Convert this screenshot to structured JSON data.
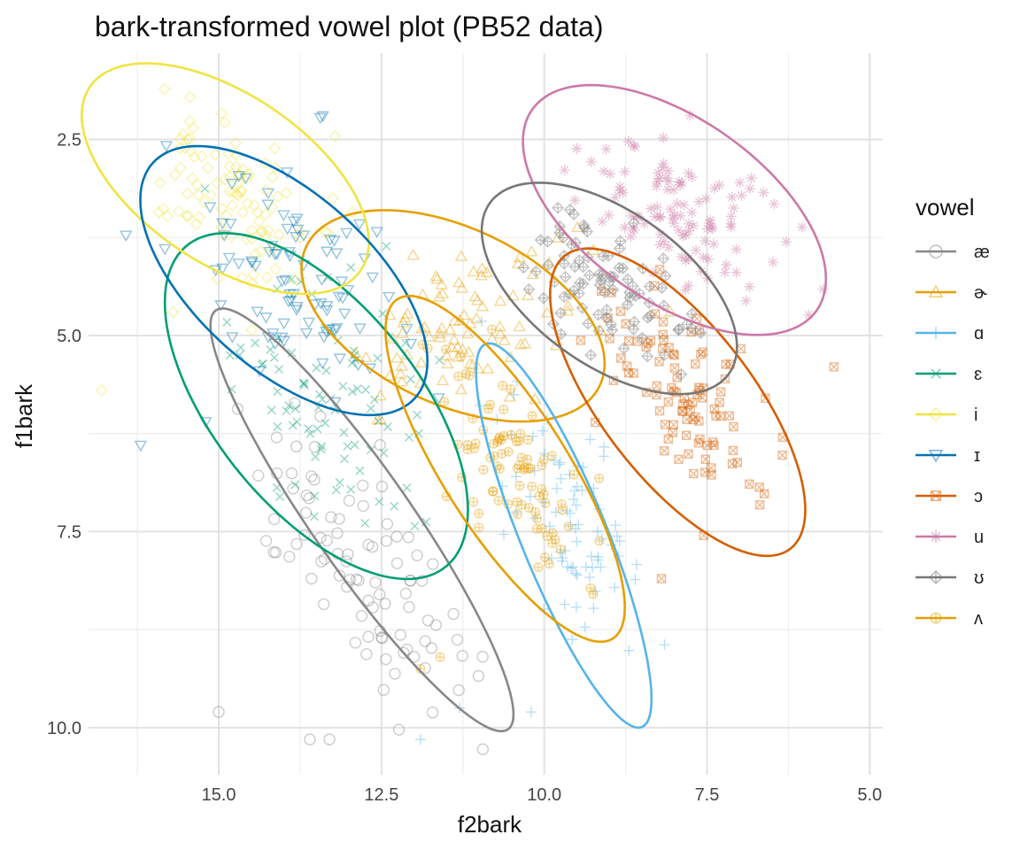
{
  "chart_data": {
    "type": "scatter",
    "title": "bark-transformed vowel plot (PB52 data)",
    "xlabel": "f2bark",
    "ylabel": "f1bark",
    "x_reversed": true,
    "y_reversed": true,
    "xlim": [
      17.0,
      4.8
    ],
    "ylim": [
      1.4,
      10.6
    ],
    "x_ticks": [
      "15.0",
      "12.5",
      "10.0",
      "7.5",
      "5.0"
    ],
    "y_ticks": [
      "2.5",
      "5.0",
      "7.5",
      "10.0"
    ],
    "grid": true,
    "legend_position": "right",
    "legend_title": "vowel",
    "series": [
      {
        "name": "æ",
        "color": "#888888",
        "shape": "circle",
        "center": [
          12.8,
          7.9
        ],
        "sd": [
          0.9,
          1.0
        ],
        "cov": -0.75,
        "n": 90,
        "ellipse": {
          "cx": 12.8,
          "cy": 7.35,
          "sx": 0.95,
          "sy": 1.1,
          "r": -0.92
        },
        "extra": [
          [
            15.0,
            9.8
          ],
          [
            13.6,
            10.15
          ],
          [
            13.3,
            10.15
          ],
          [
            12.5,
            8.85
          ]
        ]
      },
      {
        "name": "ɚ",
        "color": "#E69F00",
        "shape": "triangle",
        "center": [
          11.2,
          4.9
        ],
        "sd": [
          0.9,
          0.6
        ],
        "cov": 0.4,
        "n": 90,
        "ellipse": {
          "cx": 11.4,
          "cy": 4.75,
          "sx": 0.95,
          "sy": 0.55,
          "r": -0.45
        }
      },
      {
        "name": "ɑ",
        "color": "#56B4E9",
        "shape": "plus",
        "center": [
          9.6,
          7.4
        ],
        "sd": [
          0.5,
          0.8
        ],
        "cov": -0.6,
        "n": 80,
        "ellipse": {
          "cx": 9.7,
          "cy": 7.55,
          "sx": 0.55,
          "sy": 1.0,
          "r": -0.85
        },
        "extra": [
          [
            11.9,
            10.15
          ],
          [
            10.2,
            9.8
          ],
          [
            11.3,
            9.75
          ]
        ]
      },
      {
        "name": "ɛ",
        "color": "#009E73",
        "shape": "x",
        "center": [
          13.3,
          5.8
        ],
        "sd": [
          0.85,
          0.8
        ],
        "cov": -0.5,
        "n": 90,
        "ellipse": {
          "cx": 13.5,
          "cy": 5.9,
          "sx": 0.95,
          "sy": 0.9,
          "r": -0.6
        }
      },
      {
        "name": "i",
        "color": "#F0E442",
        "shape": "diamond",
        "center": [
          14.8,
          3.1
        ],
        "sd": [
          0.7,
          0.6
        ],
        "cov": -0.5,
        "n": 100,
        "ellipse": {
          "cx": 14.9,
          "cy": 3.0,
          "sx": 0.9,
          "sy": 0.6,
          "r": -0.55
        },
        "extra": [
          [
            16.8,
            5.7
          ],
          [
            15.7,
            4.7
          ]
        ]
      },
      {
        "name": "ɪ",
        "color": "#0072B2",
        "shape": "triangle-down",
        "center": [
          13.9,
          4.3
        ],
        "sd": [
          0.8,
          0.65
        ],
        "cov": -0.5,
        "n": 90,
        "ellipse": {
          "cx": 14.0,
          "cy": 4.3,
          "sx": 0.9,
          "sy": 0.7,
          "r": -0.6
        },
        "extra": [
          [
            16.2,
            6.4
          ],
          [
            15.2,
            6.1
          ],
          [
            13.4,
            2.2
          ]
        ]
      },
      {
        "name": "ɔ",
        "color": "#D55E00",
        "shape": "square-x",
        "center": [
          7.8,
          5.7
        ],
        "sd": [
          0.7,
          0.7
        ],
        "cov": -0.55,
        "n": 100,
        "ellipse": {
          "cx": 7.95,
          "cy": 5.85,
          "sx": 0.8,
          "sy": 0.8,
          "r": -0.7
        },
        "extra": [
          [
            7.55,
            7.55
          ],
          [
            8.2,
            8.1
          ],
          [
            5.55,
            5.4
          ]
        ]
      },
      {
        "name": "u",
        "color": "#CC79A7",
        "shape": "star",
        "center": [
          7.9,
          3.5
        ],
        "sd": [
          0.75,
          0.55
        ],
        "cov": -0.5,
        "n": 110,
        "ellipse": {
          "cx": 8.0,
          "cy": 3.4,
          "sx": 0.95,
          "sy": 0.65,
          "r": -0.55
        }
      },
      {
        "name": "ʊ",
        "color": "#777777",
        "shape": "diamond-plus",
        "center": [
          8.9,
          4.4
        ],
        "sd": [
          0.6,
          0.45
        ],
        "cov": -0.4,
        "n": 90,
        "ellipse": {
          "cx": 9.0,
          "cy": 4.4,
          "sx": 0.8,
          "sy": 0.55,
          "r": -0.55
        }
      },
      {
        "name": "ʌ",
        "color": "#E69F00",
        "shape": "circle-plus",
        "center": [
          10.5,
          6.6
        ],
        "sd": [
          0.6,
          0.7
        ],
        "cov": -0.6,
        "n": 90,
        "ellipse": {
          "cx": 10.6,
          "cy": 6.7,
          "sx": 0.75,
          "sy": 0.9,
          "r": -0.8
        },
        "extra": [
          [
            11.9,
            9.25
          ],
          [
            11.6,
            9.1
          ]
        ]
      }
    ]
  }
}
